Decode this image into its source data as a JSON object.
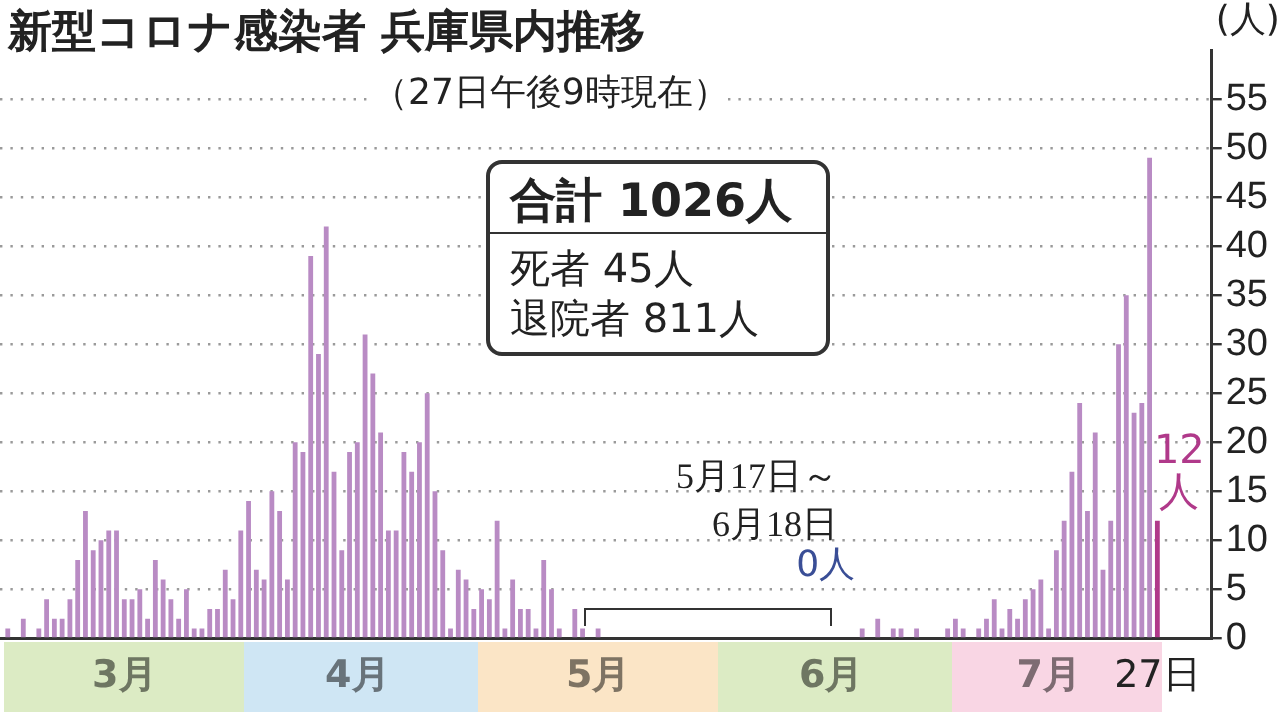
{
  "chart_data": {
    "type": "bar",
    "title": "新型コロナ感染者 兵庫県内推移",
    "subtitle": "（27日午後9時現在）",
    "ylabel": "(人)",
    "x": [
      "--03-01",
      "--03-02",
      "--03-03",
      "--03-04",
      "--03-05",
      "--03-06",
      "--03-07",
      "--03-08",
      "--03-09",
      "--03-10",
      "--03-11",
      "--03-12",
      "--03-13",
      "--03-14",
      "--03-15",
      "--03-16",
      "--03-17",
      "--03-18",
      "--03-19",
      "--03-20",
      "--03-21",
      "--03-22",
      "--03-23",
      "--03-24",
      "--03-25",
      "--03-26",
      "--03-27",
      "--03-28",
      "--03-29",
      "--03-30",
      "--03-31",
      "--04-01",
      "--04-02",
      "--04-03",
      "--04-04",
      "--04-05",
      "--04-06",
      "--04-07",
      "--04-08",
      "--04-09",
      "--04-10",
      "--04-11",
      "--04-12",
      "--04-13",
      "--04-14",
      "--04-15",
      "--04-16",
      "--04-17",
      "--04-18",
      "--04-19",
      "--04-20",
      "--04-21",
      "--04-22",
      "--04-23",
      "--04-24",
      "--04-25",
      "--04-26",
      "--04-27",
      "--04-28",
      "--04-29",
      "--04-30",
      "--05-01",
      "--05-02",
      "--05-03",
      "--05-04",
      "--05-05",
      "--05-06",
      "--05-07",
      "--05-08",
      "--05-09",
      "--05-10",
      "--05-11",
      "--05-12",
      "--05-13",
      "--05-14",
      "--05-15",
      "--05-16",
      "--05-17",
      "--05-18",
      "--05-19",
      "--05-20",
      "--05-21",
      "--05-22",
      "--05-23",
      "--05-24",
      "--05-25",
      "--05-26",
      "--05-27",
      "--05-28",
      "--05-29",
      "--05-30",
      "--05-31",
      "--06-01",
      "--06-02",
      "--06-03",
      "--06-04",
      "--06-05",
      "--06-06",
      "--06-07",
      "--06-08",
      "--06-09",
      "--06-10",
      "--06-11",
      "--06-12",
      "--06-13",
      "--06-14",
      "--06-15",
      "--06-16",
      "--06-17",
      "--06-18",
      "--06-19",
      "--06-20",
      "--06-21",
      "--06-22",
      "--06-23",
      "--06-24",
      "--06-25",
      "--06-26",
      "--06-27",
      "--06-28",
      "--06-29",
      "--06-30",
      "--07-01",
      "--07-02",
      "--07-03",
      "--07-04",
      "--07-05",
      "--07-06",
      "--07-07",
      "--07-08",
      "--07-09",
      "--07-10",
      "--07-11",
      "--07-12",
      "--07-13",
      "--07-14",
      "--07-15",
      "--07-16",
      "--07-17",
      "--07-18",
      "--07-19",
      "--07-20",
      "--07-21",
      "--07-22",
      "--07-23",
      "--07-24",
      "--07-25",
      "--07-26",
      "--07-27"
    ],
    "values": [
      1,
      0,
      2,
      0,
      1,
      4,
      2,
      2,
      4,
      8,
      13,
      9,
      10,
      11,
      11,
      4,
      4,
      5,
      2,
      8,
      6,
      4,
      2,
      5,
      1,
      1,
      3,
      3,
      7,
      4,
      11,
      14,
      7,
      6,
      15,
      13,
      6,
      20,
      19,
      39,
      29,
      42,
      17,
      9,
      19,
      20,
      31,
      27,
      21,
      11,
      11,
      19,
      17,
      20,
      25,
      15,
      9,
      1,
      7,
      6,
      3,
      5,
      4,
      12,
      1,
      6,
      3,
      3,
      1,
      8,
      5,
      1,
      0,
      3,
      1,
      0,
      1,
      0,
      0,
      0,
      0,
      0,
      0,
      0,
      0,
      0,
      0,
      0,
      0,
      0,
      0,
      0,
      0,
      0,
      0,
      0,
      0,
      0,
      0,
      0,
      0,
      0,
      0,
      0,
      0,
      0,
      0,
      0,
      0,
      0,
      1,
      0,
      2,
      0,
      1,
      1,
      0,
      1,
      0,
      0,
      0,
      1,
      2,
      1,
      0,
      1,
      2,
      4,
      1,
      3,
      2,
      4,
      5,
      6,
      1,
      9,
      12,
      17,
      24,
      13,
      21,
      7,
      12,
      30,
      35,
      23,
      24,
      49,
      12
    ],
    "colors": [
      "#b98bc4",
      "#b98bc4",
      "#b98bc4",
      "#b98bc4",
      "#b98bc4",
      "#b98bc4",
      "#b98bc4",
      "#b98bc4",
      "#b98bc4",
      "#b98bc4",
      "#b98bc4",
      "#b98bc4",
      "#b98bc4",
      "#b98bc4",
      "#b98bc4",
      "#b98bc4",
      "#b98bc4",
      "#b98bc4",
      "#b98bc4",
      "#b98bc4",
      "#b98bc4",
      "#b98bc4",
      "#b98bc4",
      "#b98bc4",
      "#b98bc4",
      "#b98bc4",
      "#b98bc4",
      "#b98bc4",
      "#b98bc4",
      "#b98bc4",
      "#b98bc4",
      "#b98bc4",
      "#b98bc4",
      "#b98bc4",
      "#b98bc4",
      "#b98bc4",
      "#b98bc4",
      "#b98bc4",
      "#b98bc4",
      "#b98bc4",
      "#b98bc4",
      "#b98bc4",
      "#b98bc4",
      "#b98bc4",
      "#b98bc4",
      "#b98bc4",
      "#b98bc4",
      "#b98bc4",
      "#b98bc4",
      "#b98bc4",
      "#b98bc4",
      "#b98bc4",
      "#b98bc4",
      "#b98bc4",
      "#b98bc4",
      "#b98bc4",
      "#b98bc4",
      "#b98bc4",
      "#b98bc4",
      "#b98bc4",
      "#b98bc4",
      "#b98bc4",
      "#b98bc4",
      "#b98bc4",
      "#b98bc4",
      "#b98bc4",
      "#b98bc4",
      "#b98bc4",
      "#b98bc4",
      "#b98bc4",
      "#b98bc4",
      "#b98bc4",
      "#b98bc4",
      "#b98bc4",
      "#b98bc4",
      "#b98bc4",
      "#b98bc4",
      "#b98bc4",
      "#b98bc4",
      "#b98bc4",
      "#b98bc4",
      "#b98bc4",
      "#b98bc4",
      "#b98bc4",
      "#b98bc4",
      "#b98bc4",
      "#b98bc4",
      "#b98bc4",
      "#b98bc4",
      "#b98bc4",
      "#b98bc4",
      "#b98bc4",
      "#b98bc4",
      "#b98bc4",
      "#b98bc4",
      "#b98bc4",
      "#b98bc4",
      "#b98bc4",
      "#b98bc4",
      "#b98bc4",
      "#b98bc4",
      "#b98bc4",
      "#b98bc4",
      "#b98bc4",
      "#b98bc4",
      "#b98bc4",
      "#b98bc4",
      "#b98bc4",
      "#b98bc4",
      "#b98bc4",
      "#b98bc4",
      "#b98bc4",
      "#b98bc4",
      "#b98bc4",
      "#b98bc4",
      "#b98bc4",
      "#b98bc4",
      "#b98bc4",
      "#b98bc4",
      "#b98bc4",
      "#b98bc4",
      "#b98bc4",
      "#b98bc4",
      "#b98bc4",
      "#b98bc4",
      "#b98bc4",
      "#b98bc4",
      "#b98bc4",
      "#b98bc4",
      "#b98bc4",
      "#b98bc4",
      "#b98bc4",
      "#b98bc4",
      "#b98bc4",
      "#b98bc4",
      "#b98bc4",
      "#b98bc4",
      "#b98bc4",
      "#b98bc4",
      "#b98bc4",
      "#b98bc4",
      "#b98bc4",
      "#b98bc4",
      "#b98bc4",
      "#b98bc4",
      "#b98bc4",
      "#b98bc4",
      "#b98bc4",
      "#b0398a"
    ],
    "value_labels": [
      null,
      null,
      null,
      null,
      null,
      null,
      null,
      null,
      null,
      null,
      null,
      null,
      null,
      null,
      null,
      null,
      null,
      null,
      null,
      null,
      null,
      null,
      null,
      null,
      null,
      null,
      null,
      null,
      null,
      null,
      null,
      null,
      null,
      null,
      null,
      null,
      null,
      null,
      null,
      null,
      null,
      null,
      null,
      null,
      null,
      null,
      null,
      null,
      null,
      null,
      null,
      null,
      null,
      null,
      null,
      null,
      null,
      null,
      null,
      null,
      null,
      null,
      null,
      null,
      null,
      null,
      null,
      null,
      null,
      null,
      null,
      null,
      null,
      null,
      null,
      null,
      null,
      null,
      null,
      null,
      null,
      null,
      null,
      null,
      null,
      null,
      null,
      null,
      null,
      null,
      null,
      null,
      null,
      null,
      null,
      null,
      null,
      null,
      null,
      null,
      null,
      null,
      null,
      null,
      null,
      null,
      null,
      null,
      null,
      null,
      null,
      null,
      null,
      null,
      null,
      null,
      null,
      null,
      null,
      null,
      null,
      null,
      null,
      null,
      null,
      null,
      null,
      null,
      null,
      null,
      null,
      null,
      null,
      null,
      null,
      null,
      null,
      null,
      null,
      null,
      null,
      null,
      null,
      null,
      null,
      null,
      null,
      null,
      "12人"
    ],
    "ylim": [
      0,
      60
    ],
    "yticks": [
      0,
      5,
      10,
      15,
      20,
      25,
      30,
      35,
      40,
      45,
      50,
      55
    ],
    "xticks": [
      {
        "value": "--03-16",
        "label": "3月"
      },
      {
        "value": "--04-15",
        "label": "4月"
      },
      {
        "value": "--05-16",
        "label": "5月"
      },
      {
        "value": "--06-15",
        "label": "6月"
      },
      {
        "value": "--07-13",
        "label": "7月"
      },
      {
        "value": "--07-27",
        "label": "27日"
      }
    ],
    "grid": "y",
    "xlim": [
      "--02-29",
      "--08-03"
    ],
    "annotations": [
      "合計 1026人",
      "死者 45人",
      "退院者 811人",
      "5月17日～",
      "6月18日",
      {
        "text": "0人",
        "x": "--06-02",
        "y": 0
      }
    ]
  }
}
